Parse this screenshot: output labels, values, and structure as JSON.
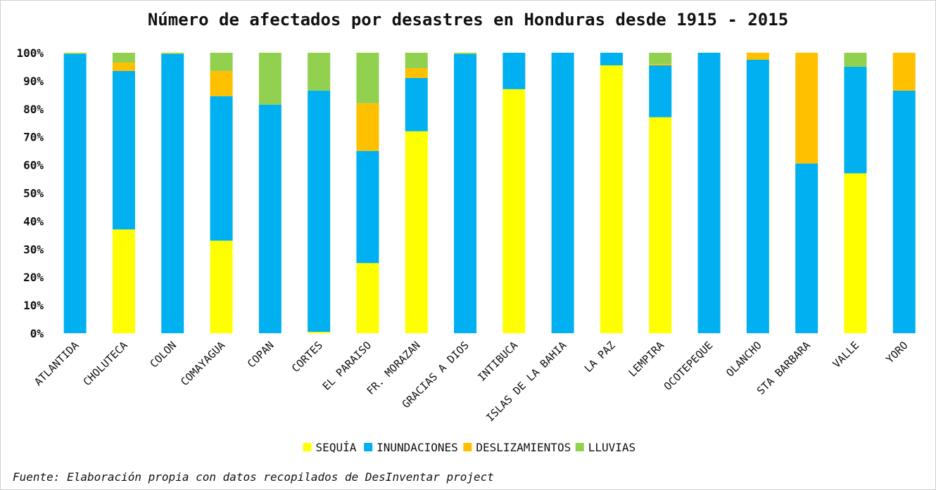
{
  "chart_data": {
    "type": "bar",
    "stacked": true,
    "title": "Número de afectados por desastres en Honduras desde 1915 - 2015",
    "source": "Fuente: Elaboración propia con datos recopilados de DesInventar project",
    "categories": [
      "ATLANTIDA",
      "CHOLUTECA",
      "COLON",
      "COMAYAGUA",
      "COPAN",
      "CORTES",
      "EL PARAISO",
      "FR. MORAZAN",
      "GRACIAS A DIOS",
      "INTIBUCA",
      "ISLAS DE LA BAHIA",
      "LA PAZ",
      "LEMPIRA",
      "OCOTEPEQUE",
      "OLANCHO",
      "STA BARBARA",
      "VALLE",
      "YORO"
    ],
    "yticks": [
      "0%",
      "10%",
      "20%",
      "30%",
      "40%",
      "50%",
      "60%",
      "70%",
      "80%",
      "90%",
      "100%"
    ],
    "ylim": [
      0,
      100
    ],
    "legend_position": "bottom",
    "grid": false,
    "series": [
      {
        "name": "SEQUÍA",
        "color": "#ffff00",
        "values": [
          0,
          37,
          0,
          33,
          0,
          0.5,
          25,
          72,
          0,
          87,
          0,
          95.5,
          77,
          0,
          0,
          0,
          57,
          0
        ]
      },
      {
        "name": "INUNDACIONES",
        "color": "#00b0f0",
        "values": [
          99.5,
          56.5,
          99.5,
          51.5,
          81.5,
          86,
          40,
          19,
          99.5,
          13,
          100,
          4.5,
          18.5,
          100,
          97.5,
          60.5,
          38,
          86.5
        ]
      },
      {
        "name": "DESLIZAMIENTOS",
        "color": "#ffc000",
        "values": [
          0,
          3,
          0,
          9,
          0,
          0,
          17,
          3.5,
          0,
          0,
          0,
          0,
          0.5,
          0,
          2.5,
          39.5,
          0,
          13.5
        ]
      },
      {
        "name": "LLUVIAS",
        "color": "#92d050",
        "values": [
          0.5,
          3.5,
          0.5,
          6.5,
          18.5,
          13.5,
          18,
          5.5,
          0.5,
          0,
          0,
          0,
          4,
          0,
          0,
          0,
          5,
          0
        ]
      }
    ]
  }
}
